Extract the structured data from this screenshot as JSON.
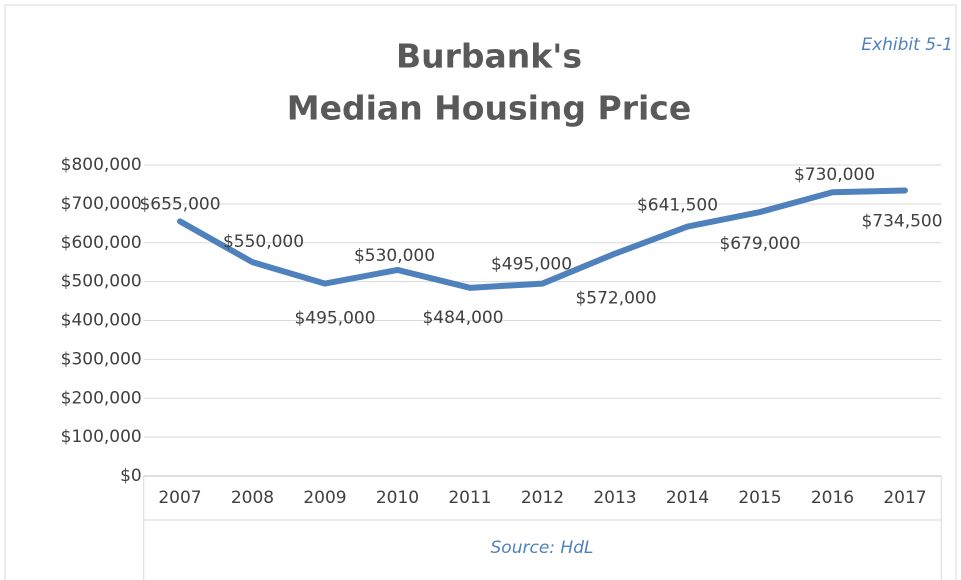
{
  "chart_data": {
    "type": "line",
    "title": "Burbank's",
    "subtitle": "Median Housing Price",
    "exhibit": "Exhibit 5-1",
    "source": "Source: HdL",
    "categories": [
      "2007",
      "2008",
      "2009",
      "2010",
      "2011",
      "2012",
      "2013",
      "2014",
      "2015",
      "2016",
      "2017"
    ],
    "series": [
      {
        "name": "Median Housing Price",
        "color": "#4f81bd",
        "values": [
          655000,
          550000,
          495000,
          530000,
          484000,
          495000,
          572000,
          641500,
          679000,
          730000,
          734500
        ],
        "value_labels": [
          "$655,000",
          "$550,000",
          "$495,000",
          "$530,000",
          "$484,000",
          "$495,000",
          "$572,000",
          "$641,500",
          "$679,000",
          "$730,000",
          "$734,500"
        ]
      }
    ],
    "ylim": [
      0,
      800000
    ],
    "yticks": [
      {
        "value": 0,
        "label": "$0"
      },
      {
        "value": 100000,
        "label": "$100,000"
      },
      {
        "value": 200000,
        "label": "$200,000"
      },
      {
        "value": 300000,
        "label": "$300,000"
      },
      {
        "value": 400000,
        "label": "$400,000"
      },
      {
        "value": 500000,
        "label": "$500,000"
      },
      {
        "value": 600000,
        "label": "$600,000"
      },
      {
        "value": 700000,
        "label": "$700,000"
      },
      {
        "value": 800000,
        "label": "$800,000"
      }
    ],
    "grid": true
  }
}
